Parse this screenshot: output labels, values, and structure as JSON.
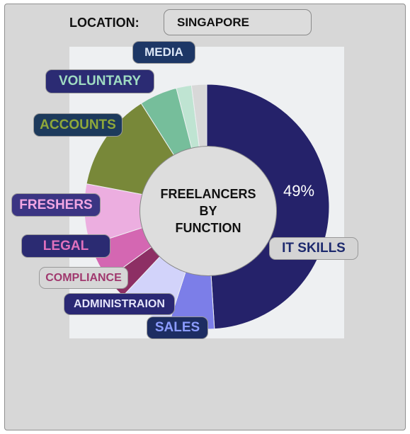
{
  "location": {
    "label": "LOCATION:",
    "value": "SINGAPORE"
  },
  "chart_data": {
    "type": "pie",
    "title_lines": [
      "FREELANCERS",
      "BY",
      "FUNCTION"
    ],
    "data_label": "49%",
    "slices": [
      {
        "name": "IT SKILLS",
        "value": 49,
        "color": "#25226a",
        "label_bg": "#d4d4d4",
        "label_color": "#1d2a6e"
      },
      {
        "name": "SALES",
        "value": 6,
        "color": "#7c7ee8",
        "label_bg": "#1d2d62",
        "label_color": "#8c9cff"
      },
      {
        "name": "ADMINISTRAION",
        "value": 7,
        "color": "#d2d3fa",
        "label_bg": "#2a2874",
        "label_color": "#e4e4fa"
      },
      {
        "name": "COMPLIANCE",
        "value": 3,
        "color": "#8d2f64",
        "label_bg": "#d6d6d6",
        "label_color": "#a0386e"
      },
      {
        "name": "LEGAL",
        "value": 5,
        "color": "#d467b2",
        "label_bg": "#2b2b72",
        "label_color": "#e071bd"
      },
      {
        "name": "FRESHERS",
        "value": 8,
        "color": "#ecaee0",
        "label_bg": "#3b3583",
        "label_color": "#f1a6e3"
      },
      {
        "name": "ACCOUNTS",
        "value": 13,
        "color": "#788839",
        "label_bg": "#1d3a5c",
        "label_color": "#8fa83a"
      },
      {
        "name": "VOLUNTARY",
        "value": 5,
        "color": "#76be9b",
        "label_bg": "#2b2b73",
        "label_color": "#9fdbc2"
      },
      {
        "name": "MEDIA",
        "value": 2,
        "color": "#bfe4d2",
        "label_bg": "#1d3766",
        "label_color": "#dce7f7"
      },
      {
        "name": "",
        "value": 2,
        "color": "#d8d8d8"
      }
    ]
  }
}
